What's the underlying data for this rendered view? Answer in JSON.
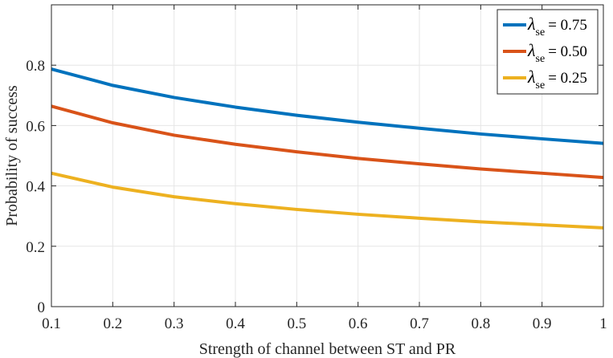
{
  "chart_data": {
    "type": "line",
    "title": "",
    "xlabel": "Strength of channel between ST and PR",
    "ylabel": "Probability of success",
    "xlim": [
      0.1,
      1
    ],
    "ylim": [
      0,
      1
    ],
    "grid": true,
    "x": [
      0.1,
      0.2,
      0.3,
      0.4,
      0.5,
      0.6,
      0.7,
      0.8,
      0.9,
      1.0
    ],
    "x_ticks": [
      "0.1",
      "0.2",
      "0.3",
      "0.4",
      "0.5",
      "0.6",
      "0.7",
      "0.8",
      "0.9",
      "1"
    ],
    "y_ticks": [
      "0",
      "0.2",
      "0.4",
      "0.6",
      "0.8"
    ],
    "y_tick_values": [
      0,
      0.2,
      0.4,
      0.6,
      0.8
    ],
    "legend_position": "top-right",
    "legend_symbol": "λ",
    "legend_subscript": "se",
    "series": [
      {
        "name": "λse = 0.75",
        "value_text": "= 0.75",
        "color": "#0072BD",
        "values": [
          0.787,
          0.733,
          0.693,
          0.661,
          0.634,
          0.611,
          0.591,
          0.572,
          0.556,
          0.541
        ]
      },
      {
        "name": "λse = 0.50",
        "value_text": "= 0.50",
        "color": "#D95319",
        "values": [
          0.664,
          0.609,
          0.568,
          0.538,
          0.513,
          0.491,
          0.473,
          0.456,
          0.442,
          0.428
        ]
      },
      {
        "name": "λse = 0.25",
        "value_text": "= 0.25",
        "color": "#EDB120",
        "values": [
          0.442,
          0.396,
          0.364,
          0.341,
          0.322,
          0.306,
          0.293,
          0.281,
          0.271,
          0.261
        ]
      }
    ]
  }
}
